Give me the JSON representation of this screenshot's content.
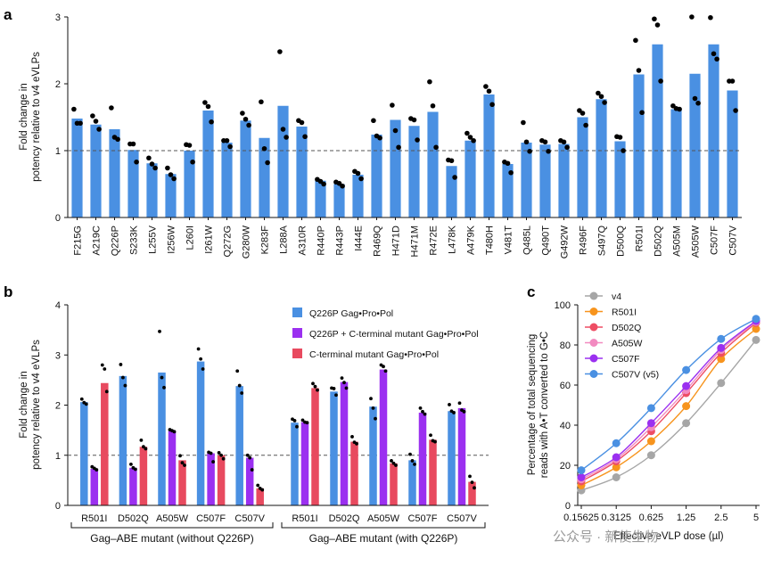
{
  "chart_data": [
    {
      "panel": "a",
      "type": "bar",
      "ylabel": [
        "Fold change in",
        "potency relative to v4 eVLPs"
      ],
      "ylim": [
        0,
        3
      ],
      "yticks": [
        0,
        1,
        2,
        3
      ],
      "reference_line": 1,
      "bar_color": "#4a90e2",
      "point_color": "#000000",
      "categories": [
        "F215G",
        "A219C",
        "Q226P",
        "S233K",
        "L255V",
        "I256W",
        "L260I",
        "I261W",
        "Q272G",
        "G280W",
        "K283F",
        "L288A",
        "A310R",
        "R440P",
        "R443P",
        "I444E",
        "R469Q",
        "H471D",
        "H471M",
        "R472E",
        "L478K",
        "A479K",
        "T480H",
        "V481T",
        "Q485L",
        "Q490T",
        "G492W",
        "R496F",
        "S497Q",
        "D500Q",
        "R501I",
        "D502Q",
        "A505M",
        "A505W",
        "C507F",
        "C507V"
      ],
      "values": [
        1.48,
        1.39,
        1.32,
        1.01,
        0.81,
        0.65,
        1.0,
        1.6,
        1.12,
        1.45,
        1.19,
        1.67,
        1.36,
        0.55,
        0.5,
        0.64,
        1.24,
        1.46,
        1.37,
        1.58,
        0.77,
        1.15,
        1.84,
        0.8,
        1.12,
        1.09,
        1.1,
        1.5,
        1.77,
        1.14,
        2.14,
        2.59,
        1.62,
        2.15,
        2.59,
        1.9
      ],
      "replicates": [
        [
          1.62,
          1.41,
          1.41
        ],
        [
          1.52,
          1.44,
          1.32
        ],
        [
          1.64,
          1.2,
          1.17
        ],
        [
          1.1,
          1.1,
          0.83
        ],
        [
          0.89,
          0.8,
          0.74
        ],
        [
          0.74,
          0.64,
          0.58
        ],
        [
          1.09,
          1.08,
          0.83
        ],
        [
          1.72,
          1.66,
          1.43
        ],
        [
          1.15,
          1.15,
          1.06
        ],
        [
          1.56,
          1.47,
          1.38
        ],
        [
          1.73,
          1.03,
          0.82
        ],
        [
          2.48,
          1.32,
          1.2
        ],
        [
          1.45,
          1.42,
          1.21
        ],
        [
          0.57,
          0.54,
          0.5
        ],
        [
          0.53,
          0.51,
          0.47
        ],
        [
          0.69,
          0.66,
          0.58
        ],
        [
          1.45,
          1.22,
          1.19
        ],
        [
          1.68,
          1.3,
          1.05
        ],
        [
          1.48,
          1.46,
          1.16
        ],
        [
          2.03,
          1.67,
          1.05
        ],
        [
          0.86,
          0.85,
          0.6
        ],
        [
          1.26,
          1.2,
          1.15
        ],
        [
          1.96,
          1.89,
          1.69
        ],
        [
          0.83,
          0.81,
          0.67
        ],
        [
          1.42,
          1.13,
          0.99
        ],
        [
          1.15,
          1.13,
          0.99
        ],
        [
          1.15,
          1.13,
          1.05
        ],
        [
          1.6,
          1.56,
          1.38
        ],
        [
          1.86,
          1.81,
          1.72
        ],
        [
          1.21,
          1.2,
          1.0
        ],
        [
          2.65,
          2.2,
          1.57
        ],
        [
          2.97,
          2.88,
          2.04
        ],
        [
          1.67,
          1.63,
          1.62
        ],
        [
          3.0,
          1.78,
          1.71
        ],
        [
          2.99,
          2.45,
          2.37
        ],
        [
          2.04,
          2.04,
          1.6
        ]
      ]
    },
    {
      "panel": "b",
      "type": "bar",
      "ylabel": [
        "Fold change in",
        "potency relative to v4 eVLPs"
      ],
      "ylim": [
        0,
        4
      ],
      "yticks": [
        0,
        1,
        2,
        3,
        4
      ],
      "reference_line": 1,
      "legend": [
        {
          "name": "Q226P Gag•Pro•Pol",
          "color": "#4a90e2"
        },
        {
          "name": "Q226P + C-terminal mutant Gag•Pro•Pol",
          "color": "#9b30f0"
        },
        {
          "name": "C-terminal mutant Gag•Pro•Pol",
          "color": "#e84a5f"
        }
      ],
      "groups": [
        {
          "name": "Gag–ABE mutant (without Q226P)",
          "categories": [
            "R501I",
            "D502Q",
            "A505W",
            "C507F",
            "C507V"
          ],
          "series": [
            {
              "name": "Q226P Gag•Pro•Pol",
              "values": [
                2.06,
                2.58,
                2.65,
                2.87,
                2.38
              ],
              "replicates": [
                [
                  2.12,
                  2.05,
                  2.02
                ],
                [
                  2.81,
                  2.55,
                  2.39
                ],
                [
                  3.47,
                  2.55,
                  2.35
                ],
                [
                  3.12,
                  2.92,
                  2.72
                ],
                [
                  2.68,
                  2.39,
                  2.24
                ]
              ]
            },
            {
              "name": "Q226P + C-terminal mutant Gag•Pro•Pol",
              "values": [
                0.73,
                0.75,
                1.48,
                1.04,
                0.95
              ],
              "replicates": [
                [
                  0.77,
                  0.74,
                  0.71
                ],
                [
                  0.82,
                  0.75,
                  0.72
                ],
                [
                  1.51,
                  1.49,
                  1.47
                ],
                [
                  1.06,
                  1.04,
                  0.87
                ],
                [
                  1.0,
                  0.95,
                  0.71
                ]
              ]
            },
            {
              "name": "C-terminal mutant Gag•Pro•Pol",
              "values": [
                2.44,
                1.17,
                0.9,
                1.0,
                0.34
              ],
              "replicates": [
                [
                  2.8,
                  2.72,
                  2.27
                ],
                [
                  1.3,
                  1.17,
                  1.13
                ],
                [
                  0.99,
                  0.85,
                  0.8
                ],
                [
                  1.05,
                  1.0,
                  0.93
                ],
                [
                  0.4,
                  0.34,
                  0.31
                ]
              ]
            }
          ]
        },
        {
          "name": "Gag–ABE mutant (with Q226P)",
          "categories": [
            "R501I",
            "D502Q",
            "A505W",
            "C507F",
            "C507V"
          ],
          "series": [
            {
              "name": "Q226P Gag•Pro•Pol",
              "values": [
                1.65,
                2.27,
                1.97,
                0.9,
                1.88
              ],
              "replicates": [
                [
                  1.72,
                  1.69,
                  1.57
                ],
                [
                  2.34,
                  2.33,
                  2.2
                ],
                [
                  2.13,
                  1.94,
                  1.73
                ],
                [
                  1.02,
                  0.89,
                  0.82
                ],
                [
                  2.01,
                  1.88,
                  1.85
                ]
              ]
            },
            {
              "name": "Q226P + C-terminal mutant Gag•Pro•Pol",
              "values": [
                1.66,
                2.46,
                2.71,
                1.85,
                1.94
              ],
              "replicates": [
                [
                  1.7,
                  1.66,
                  1.65
                ],
                [
                  2.54,
                  2.45,
                  2.34
                ],
                [
                  2.8,
                  2.77,
                  2.68
                ],
                [
                  1.94,
                  1.87,
                  1.82
                ],
                [
                  2.04,
                  1.9,
                  1.87
                ]
              ]
            },
            {
              "name": "C-terminal mutant Gag•Pro•Pol",
              "values": [
                2.34,
                1.27,
                0.84,
                1.31,
                0.47
              ],
              "replicates": [
                [
                  2.43,
                  2.37,
                  2.3
                ],
                [
                  1.37,
                  1.26,
                  1.23
                ],
                [
                  0.89,
                  0.84,
                  0.8
                ],
                [
                  1.4,
                  1.29,
                  1.27
                ],
                [
                  0.58,
                  0.46,
                  0.35
                ]
              ]
            }
          ]
        }
      ]
    },
    {
      "panel": "c",
      "type": "line",
      "xlabel": "Effective eVLP dose (µl)",
      "ylabel": [
        "Percentage of total sequencing",
        "reads with A•T converted to G•C"
      ],
      "x": [
        0.15625,
        0.3125,
        0.625,
        1.25,
        2.5,
        5
      ],
      "xticks": [
        "0.15625",
        "0.3125",
        "0.625",
        "1.25",
        "2.5",
        "5"
      ],
      "xscale": "log",
      "ylim": [
        0,
        100
      ],
      "yticks": [
        0,
        20,
        40,
        60,
        80,
        100
      ],
      "legend_position": "top-left",
      "series": [
        {
          "name": "v4",
          "color": "#a6a6a6",
          "values": [
            7.5,
            14,
            25,
            41,
            61,
            82.5
          ]
        },
        {
          "name": "R501I",
          "color": "#f7941d",
          "values": [
            10,
            19,
            32,
            49.5,
            73,
            88
          ]
        },
        {
          "name": "D502Q",
          "color": "#ee4d63",
          "values": [
            12,
            22,
            37,
            56,
            76,
            91
          ]
        },
        {
          "name": "A505W",
          "color": "#f28ac0",
          "values": [
            13,
            23,
            39,
            57.5,
            77.5,
            91.5
          ]
        },
        {
          "name": "C507F",
          "color": "#9b30f0",
          "values": [
            14,
            24,
            41,
            59.5,
            78.5,
            92
          ]
        },
        {
          "name": "C507V (v5)",
          "color": "#4a90e2",
          "values": [
            17.5,
            31,
            48.5,
            67.5,
            83,
            93
          ]
        }
      ]
    }
  ],
  "watermark": "公众号 · 新使生物"
}
